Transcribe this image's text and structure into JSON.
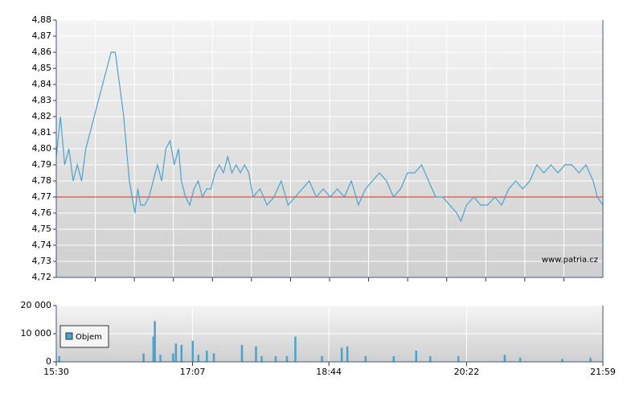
{
  "chart_data": [
    {
      "type": "line",
      "xlim": [
        "15:30",
        "21:59"
      ],
      "x": [
        "15:30",
        "15:33",
        "15:36",
        "15:39",
        "15:42",
        "15:45",
        "15:48",
        "15:51",
        "15:54",
        "15:57",
        "16:00",
        "16:03",
        "16:06",
        "16:09",
        "16:12",
        "16:15",
        "16:18",
        "16:20",
        "16:22",
        "16:24",
        "16:26",
        "16:28",
        "16:30",
        "16:33",
        "16:36",
        "16:39",
        "16:42",
        "16:45",
        "16:48",
        "16:51",
        "16:54",
        "16:57",
        "16:59",
        "17:02",
        "17:05",
        "17:08",
        "17:11",
        "17:14",
        "17:17",
        "17:20",
        "17:23",
        "17:26",
        "17:29",
        "17:32",
        "17:35",
        "17:38",
        "17:41",
        "17:44",
        "17:47",
        "17:50",
        "17:55",
        "18:00",
        "18:05",
        "18:10",
        "18:15",
        "18:20",
        "18:25",
        "18:30",
        "18:35",
        "18:40",
        "18:45",
        "18:50",
        "18:55",
        "19:00",
        "19:05",
        "19:10",
        "19:15",
        "19:20",
        "19:25",
        "19:30",
        "19:35",
        "19:40",
        "19:45",
        "19:50",
        "19:55",
        "20:00",
        "20:05",
        "20:10",
        "20:15",
        "20:18",
        "20:22",
        "20:27",
        "20:32",
        "20:37",
        "20:42",
        "20:47",
        "20:52",
        "20:57",
        "21:02",
        "21:07",
        "21:12",
        "21:17",
        "21:22",
        "21:27",
        "21:32",
        "21:37",
        "21:42",
        "21:47",
        "21:52",
        "21:55",
        "21:59"
      ],
      "series": [
        {
          "color": "#4aa3cc",
          "values": [
            4.795,
            4.82,
            4.79,
            4.8,
            4.78,
            4.79,
            4.78,
            4.8,
            4.81,
            4.82,
            4.83,
            4.84,
            4.85,
            4.86,
            4.86,
            4.84,
            4.82,
            4.8,
            4.78,
            4.77,
            4.76,
            4.775,
            4.765,
            4.765,
            4.77,
            4.78,
            4.79,
            4.78,
            4.8,
            4.805,
            4.79,
            4.8,
            4.78,
            4.77,
            4.765,
            4.775,
            4.78,
            4.77,
            4.775,
            4.775,
            4.785,
            4.79,
            4.785,
            4.795,
            4.785,
            4.79,
            4.785,
            4.79,
            4.785,
            4.77,
            4.775,
            4.765,
            4.77,
            4.78,
            4.765,
            4.77,
            4.775,
            4.78,
            4.77,
            4.775,
            4.77,
            4.775,
            4.77,
            4.78,
            4.765,
            4.775,
            4.78,
            4.785,
            4.78,
            4.77,
            4.775,
            4.785,
            4.785,
            4.79,
            4.78,
            4.77,
            4.77,
            4.765,
            4.76,
            4.755,
            4.765,
            4.77,
            4.765,
            4.765,
            4.77,
            4.765,
            4.775,
            4.78,
            4.775,
            4.78,
            4.79,
            4.785,
            4.79,
            4.785,
            4.79,
            4.79,
            4.785,
            4.79,
            4.78,
            4.77,
            4.765
          ]
        }
      ],
      "reference_line": 4.77,
      "reference_color": "#e03020",
      "ylim": [
        4.72,
        4.88
      ],
      "yticks": [
        {
          "value": 4.72,
          "label": "4,72"
        },
        {
          "value": 4.73,
          "label": "4,73"
        },
        {
          "value": 4.74,
          "label": "4,74"
        },
        {
          "value": 4.75,
          "label": "4,75"
        },
        {
          "value": 4.76,
          "label": "4,76"
        },
        {
          "value": 4.77,
          "label": "4,77"
        },
        {
          "value": 4.78,
          "label": "4,78"
        },
        {
          "value": 4.79,
          "label": "4,79"
        },
        {
          "value": 4.8,
          "label": "4,80"
        },
        {
          "value": 4.81,
          "label": "4,81"
        },
        {
          "value": 4.82,
          "label": "4,82"
        },
        {
          "value": 4.83,
          "label": "4,83"
        },
        {
          "value": 4.84,
          "label": "4,84"
        },
        {
          "value": 4.85,
          "label": "4,85"
        },
        {
          "value": 4.86,
          "label": "4,86"
        },
        {
          "value": 4.87,
          "label": "4,87"
        },
        {
          "value": 4.88,
          "label": "4,88"
        }
      ],
      "annotation": "www.patria.cz",
      "grid": true
    },
    {
      "type": "bar",
      "xlim": [
        "15:30",
        "21:59"
      ],
      "xticks": [
        "15:30",
        "17:07",
        "18:44",
        "20:22",
        "21:59"
      ],
      "x": [
        "15:32",
        "16:32",
        "16:39",
        "16:40",
        "16:44",
        "16:53",
        "16:55",
        "16:59",
        "17:07",
        "17:11",
        "17:17",
        "17:22",
        "17:42",
        "17:52",
        "17:56",
        "18:06",
        "18:14",
        "18:20",
        "18:39",
        "18:53",
        "18:57",
        "19:10",
        "19:30",
        "19:46",
        "19:56",
        "20:16",
        "20:49",
        "21:00",
        "21:30",
        "21:50"
      ],
      "series": [
        {
          "name": "Objem",
          "color": "#4aa3cc",
          "values": [
            2000,
            3000,
            9000,
            14500,
            2500,
            3000,
            6500,
            6000,
            7500,
            2500,
            4000,
            3000,
            6000,
            5500,
            2000,
            2000,
            2000,
            9000,
            2000,
            5000,
            5500,
            2000,
            2000,
            4000,
            2000,
            2000,
            2500,
            1500,
            1000,
            1500
          ]
        }
      ],
      "ylim": [
        0,
        20000
      ],
      "yticks": [
        0,
        {
          "value": 10000,
          "label": "10 000"
        },
        {
          "value": 20000,
          "label": "20 000"
        }
      ],
      "legend": "top-left",
      "grid": true
    }
  ]
}
